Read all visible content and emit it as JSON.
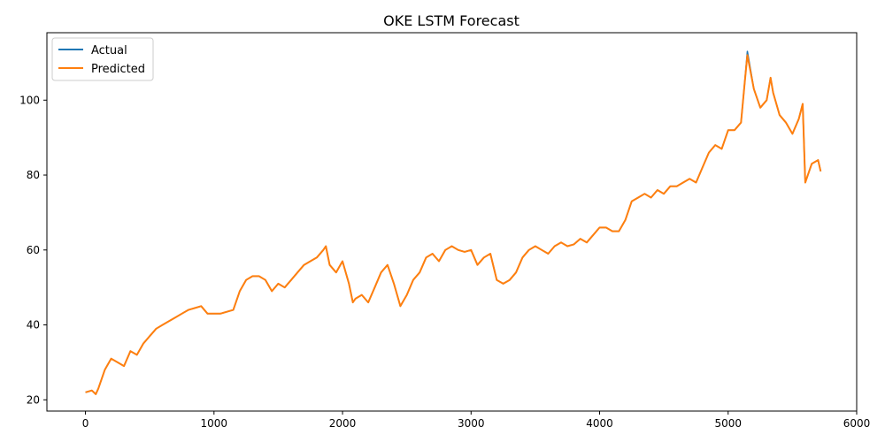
{
  "chart_data": {
    "type": "line",
    "title": "OKE LSTM Forecast",
    "xlabel": "",
    "ylabel": "",
    "xlim": [
      -300,
      6000
    ],
    "ylim": [
      17,
      118
    ],
    "xticks": [
      0,
      1000,
      2000,
      3000,
      4000,
      5000,
      6000
    ],
    "yticks": [
      20,
      40,
      60,
      80,
      100
    ],
    "grid": false,
    "legend_position": "top-left",
    "x": [
      0,
      50,
      80,
      100,
      150,
      200,
      250,
      300,
      350,
      400,
      450,
      500,
      550,
      600,
      650,
      700,
      750,
      800,
      850,
      900,
      950,
      1000,
      1050,
      1100,
      1150,
      1200,
      1250,
      1300,
      1350,
      1400,
      1450,
      1500,
      1550,
      1600,
      1650,
      1700,
      1750,
      1800,
      1850,
      1870,
      1900,
      1950,
      2000,
      2050,
      2080,
      2100,
      2150,
      2200,
      2250,
      2300,
      2350,
      2400,
      2450,
      2500,
      2550,
      2600,
      2650,
      2700,
      2750,
      2800,
      2850,
      2900,
      2950,
      3000,
      3050,
      3100,
      3150,
      3200,
      3250,
      3300,
      3350,
      3400,
      3450,
      3500,
      3550,
      3600,
      3650,
      3700,
      3750,
      3800,
      3850,
      3900,
      3950,
      4000,
      4050,
      4100,
      4150,
      4200,
      4250,
      4300,
      4350,
      4400,
      4450,
      4500,
      4550,
      4600,
      4650,
      4700,
      4750,
      4800,
      4850,
      4900,
      4950,
      5000,
      5050,
      5100,
      5130,
      5150,
      5200,
      5250,
      5300,
      5330,
      5350,
      5400,
      5450,
      5500,
      5550,
      5580,
      5600,
      5650,
      5700,
      5720
    ],
    "series": [
      {
        "name": "Actual",
        "color": "#1f77b4",
        "values": [
          22,
          22.5,
          21.5,
          23,
          28,
          31,
          30,
          29,
          33,
          32,
          35,
          37,
          39,
          40,
          41,
          42,
          43,
          44,
          44.5,
          45,
          43,
          43,
          43,
          43.5,
          44,
          49,
          52,
          53,
          53,
          52,
          49,
          51,
          50,
          52,
          54,
          56,
          57,
          58,
          60,
          61,
          56,
          54,
          57,
          51,
          46,
          47,
          48,
          46,
          50,
          54,
          56,
          51,
          45,
          48,
          52,
          54,
          58,
          59,
          57,
          60,
          61,
          60,
          59.5,
          60,
          56,
          58,
          59,
          52,
          51,
          52,
          54,
          58,
          60,
          61,
          60,
          59,
          61,
          62,
          61,
          61.5,
          63,
          62,
          64,
          66,
          66,
          65,
          65,
          68,
          73,
          74,
          75,
          74,
          76,
          75,
          77,
          77,
          78,
          79,
          78,
          82,
          86,
          88,
          87,
          92,
          92,
          94,
          105,
          113,
          103,
          98,
          100,
          106,
          102,
          96,
          94,
          91,
          95,
          99,
          78,
          83,
          84,
          81
        ]
      },
      {
        "name": "Predicted",
        "color": "#ff7f0e",
        "values": [
          22,
          22.5,
          21.5,
          23,
          28,
          31,
          30,
          29,
          33,
          32,
          35,
          37,
          39,
          40,
          41,
          42,
          43,
          44,
          44.5,
          45,
          43,
          43,
          43,
          43.5,
          44,
          49,
          52,
          53,
          53,
          52,
          49,
          51,
          50,
          52,
          54,
          56,
          57,
          58,
          60,
          61,
          56,
          54,
          57,
          51,
          46,
          47,
          48,
          46,
          50,
          54,
          56,
          51,
          45,
          48,
          52,
          54,
          58,
          59,
          57,
          60,
          61,
          60,
          59.5,
          60,
          56,
          58,
          59,
          52,
          51,
          52,
          54,
          58,
          60,
          61,
          60,
          59,
          61,
          62,
          61,
          61.5,
          63,
          62,
          64,
          66,
          66,
          65,
          65,
          68,
          73,
          74,
          75,
          74,
          76,
          75,
          77,
          77,
          78,
          79,
          78,
          82,
          86,
          88,
          87,
          92,
          92,
          94,
          105,
          112,
          103,
          98,
          100,
          106,
          102,
          96,
          94,
          91,
          95,
          99,
          78,
          83,
          84,
          81
        ]
      }
    ]
  }
}
